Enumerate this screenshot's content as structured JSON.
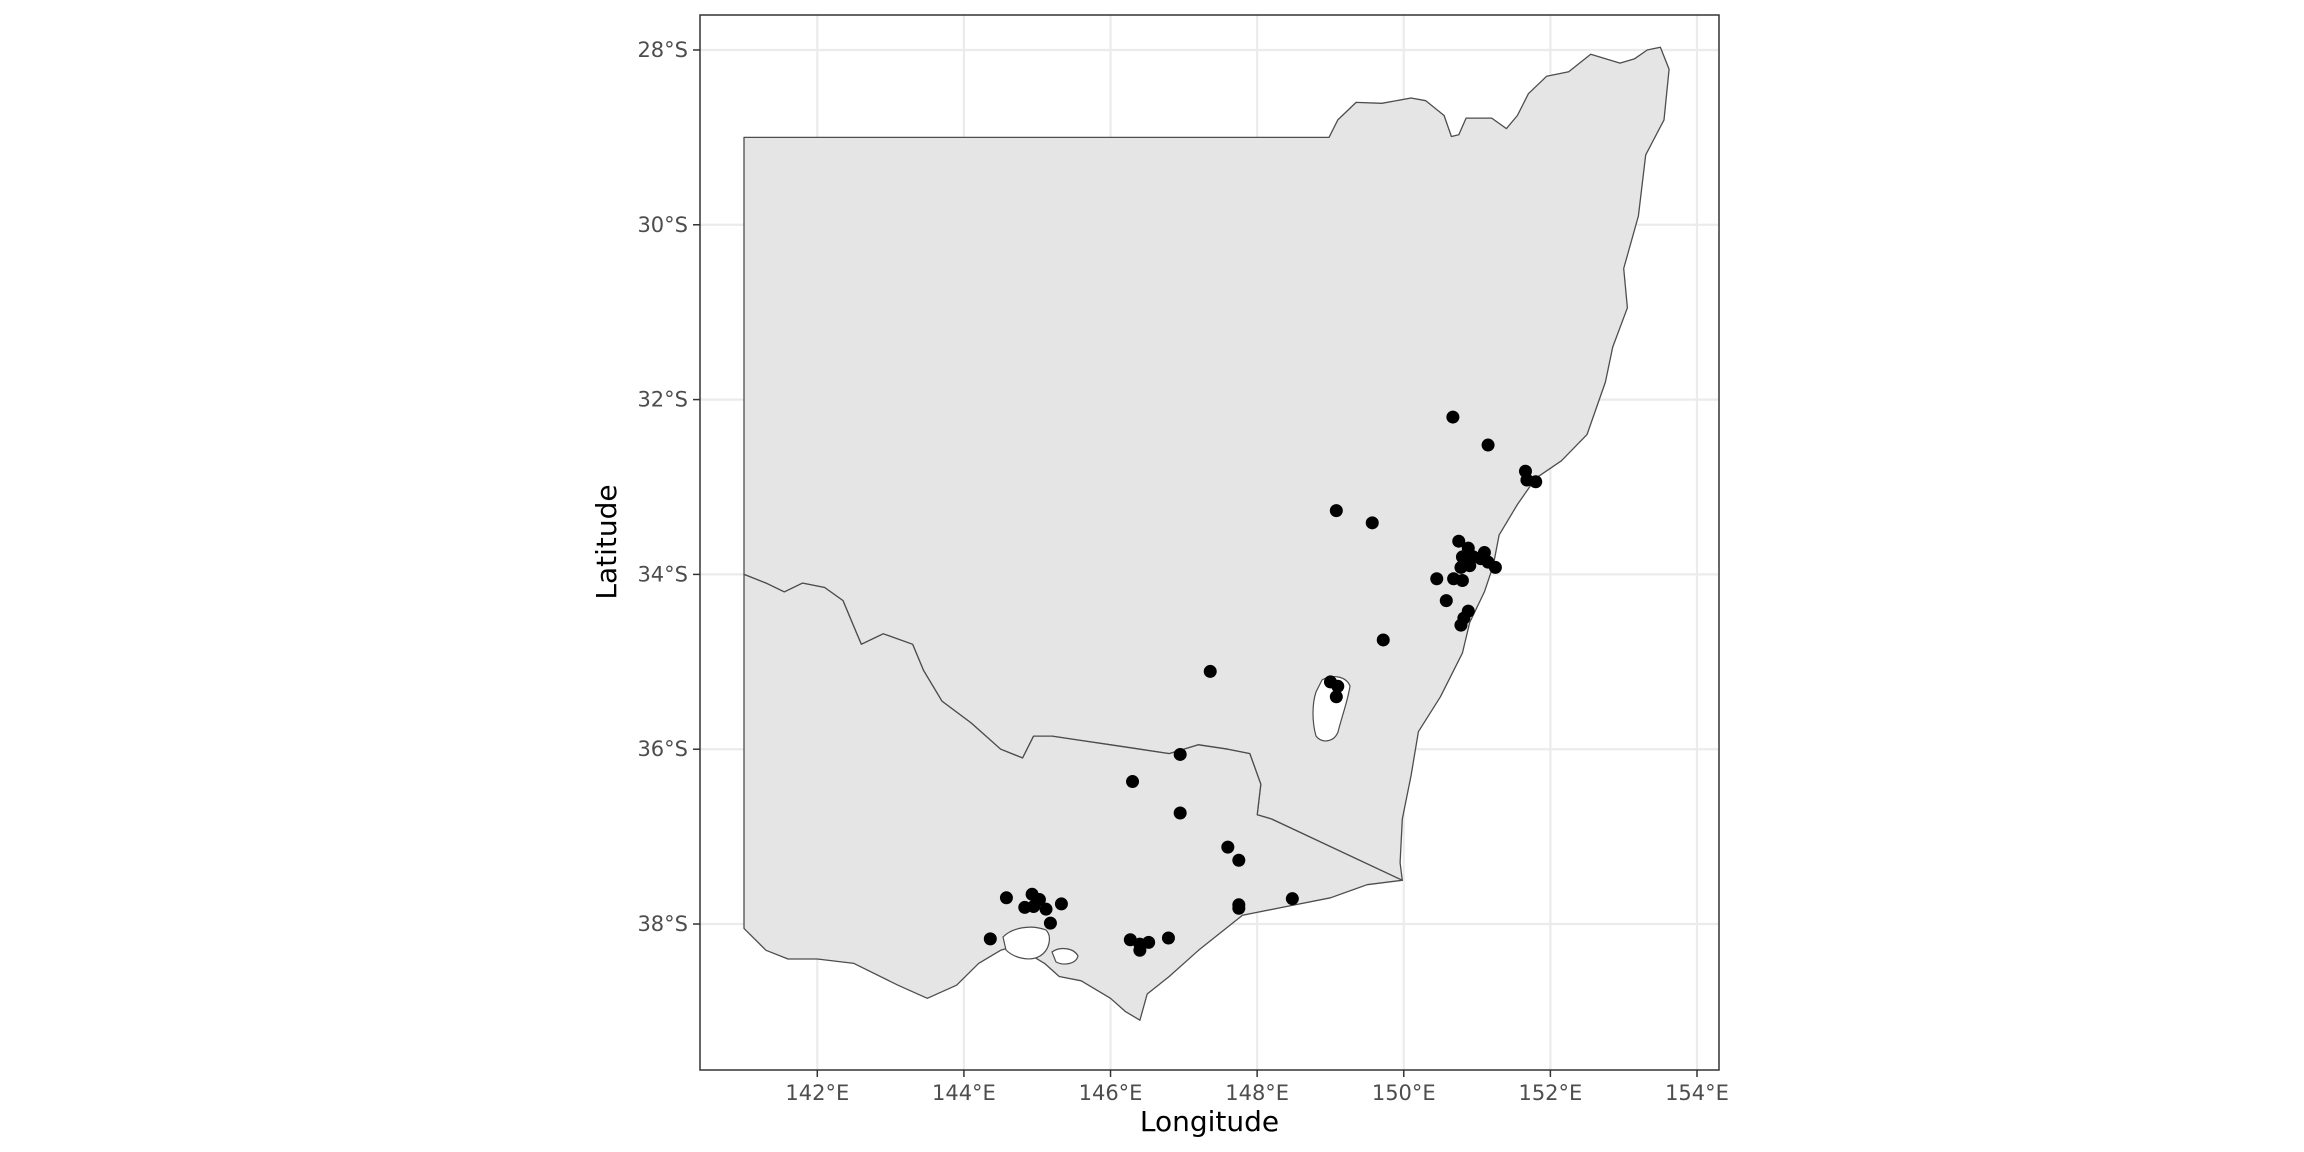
{
  "chart_data": {
    "type": "scatter",
    "title": "",
    "xlabel": "Longitude",
    "ylabel": "Latitude",
    "xlim": [
      140.4,
      154.3
    ],
    "ylim": [
      -39.67,
      -27.6
    ],
    "grid": true,
    "x_ticks": [
      {
        "value": 142,
        "label": "142°E"
      },
      {
        "value": 144,
        "label": "144°E"
      },
      {
        "value": 146,
        "label": "146°E"
      },
      {
        "value": 148,
        "label": "148°E"
      },
      {
        "value": 150,
        "label": "150°E"
      },
      {
        "value": 152,
        "label": "152°E"
      },
      {
        "value": 154,
        "label": "154°E"
      }
    ],
    "y_ticks": [
      {
        "value": -28,
        "label": "28°S"
      },
      {
        "value": -30,
        "label": "30°S"
      },
      {
        "value": -32,
        "label": "32°S"
      },
      {
        "value": -34,
        "label": "34°S"
      },
      {
        "value": -36,
        "label": "36°S"
      },
      {
        "value": -38,
        "label": "38°S"
      }
    ],
    "colors": {
      "land_fill": "#e5e5e5",
      "border": "#4d4d4d",
      "grid": "#ebebeb",
      "point": "#000000",
      "panel_border": "#333333"
    },
    "regions": [
      {
        "name": "nsw",
        "points": [
          [
            141.0,
            -29.0
          ],
          [
            148.98,
            -29.0
          ],
          [
            149.1,
            -28.8
          ],
          [
            149.35,
            -28.6
          ],
          [
            149.7,
            -28.61
          ],
          [
            150.1,
            -28.55
          ],
          [
            150.3,
            -28.58
          ],
          [
            150.55,
            -28.75
          ],
          [
            150.65,
            -28.99
          ],
          [
            150.75,
            -28.97
          ],
          [
            150.85,
            -28.78
          ],
          [
            151.2,
            -28.78
          ],
          [
            151.4,
            -28.9
          ],
          [
            151.55,
            -28.75
          ],
          [
            151.7,
            -28.5
          ],
          [
            151.95,
            -28.3
          ],
          [
            152.25,
            -28.25
          ],
          [
            152.55,
            -28.05
          ],
          [
            152.95,
            -28.15
          ],
          [
            153.15,
            -28.1
          ],
          [
            153.32,
            -28.0
          ],
          [
            153.5,
            -27.97
          ],
          [
            153.62,
            -28.22
          ],
          [
            153.55,
            -28.8
          ],
          [
            153.3,
            -29.2
          ],
          [
            153.2,
            -29.9
          ],
          [
            153.0,
            -30.5
          ],
          [
            153.05,
            -30.95
          ],
          [
            152.85,
            -31.4
          ],
          [
            152.75,
            -31.8
          ],
          [
            152.5,
            -32.4
          ],
          [
            152.15,
            -32.7
          ],
          [
            151.8,
            -32.9
          ],
          [
            151.55,
            -33.2
          ],
          [
            151.3,
            -33.55
          ],
          [
            151.22,
            -33.9
          ],
          [
            151.1,
            -34.2
          ],
          [
            150.9,
            -34.55
          ],
          [
            150.8,
            -34.9
          ],
          [
            150.5,
            -35.4
          ],
          [
            150.2,
            -35.8
          ],
          [
            150.1,
            -36.3
          ],
          [
            149.98,
            -36.8
          ],
          [
            149.95,
            -37.3
          ],
          [
            149.98,
            -37.5
          ],
          [
            148.2,
            -36.8
          ],
          [
            148.0,
            -36.75
          ],
          [
            148.05,
            -36.4
          ],
          [
            147.9,
            -36.05
          ],
          [
            147.6,
            -36.0
          ],
          [
            147.2,
            -35.95
          ],
          [
            146.8,
            -36.05
          ],
          [
            146.4,
            -36.0
          ],
          [
            146.0,
            -35.95
          ],
          [
            145.6,
            -35.9
          ],
          [
            145.2,
            -35.85
          ],
          [
            144.95,
            -35.85
          ],
          [
            144.8,
            -36.1
          ],
          [
            144.5,
            -36.0
          ],
          [
            144.1,
            -35.7
          ],
          [
            143.7,
            -35.45
          ],
          [
            143.45,
            -35.1
          ],
          [
            143.3,
            -34.8
          ],
          [
            142.9,
            -34.68
          ],
          [
            142.6,
            -34.8
          ],
          [
            142.5,
            -34.6
          ],
          [
            142.35,
            -34.3
          ],
          [
            142.1,
            -34.15
          ],
          [
            141.8,
            -34.1
          ],
          [
            141.55,
            -34.2
          ],
          [
            141.3,
            -34.1
          ],
          [
            141.0,
            -34.0
          ]
        ]
      },
      {
        "name": "vic",
        "points": [
          [
            141.0,
            -34.0
          ],
          [
            141.3,
            -34.1
          ],
          [
            141.55,
            -34.2
          ],
          [
            141.8,
            -34.1
          ],
          [
            142.1,
            -34.15
          ],
          [
            142.35,
            -34.3
          ],
          [
            142.5,
            -34.6
          ],
          [
            142.6,
            -34.8
          ],
          [
            142.9,
            -34.68
          ],
          [
            143.3,
            -34.8
          ],
          [
            143.45,
            -35.1
          ],
          [
            143.7,
            -35.45
          ],
          [
            144.1,
            -35.7
          ],
          [
            144.5,
            -36.0
          ],
          [
            144.8,
            -36.1
          ],
          [
            144.95,
            -35.85
          ],
          [
            145.2,
            -35.85
          ],
          [
            145.6,
            -35.9
          ],
          [
            146.0,
            -35.95
          ],
          [
            146.4,
            -36.0
          ],
          [
            146.8,
            -36.05
          ],
          [
            147.2,
            -35.95
          ],
          [
            147.6,
            -36.0
          ],
          [
            147.9,
            -36.05
          ],
          [
            148.05,
            -36.4
          ],
          [
            148.0,
            -36.75
          ],
          [
            148.2,
            -36.8
          ],
          [
            149.98,
            -37.5
          ],
          [
            149.5,
            -37.55
          ],
          [
            149.0,
            -37.7
          ],
          [
            148.4,
            -37.8
          ],
          [
            147.8,
            -37.9
          ],
          [
            147.2,
            -38.3
          ],
          [
            146.8,
            -38.6
          ],
          [
            146.5,
            -38.8
          ],
          [
            146.4,
            -39.1
          ],
          [
            146.2,
            -39.0
          ],
          [
            146.0,
            -38.85
          ],
          [
            145.6,
            -38.65
          ],
          [
            145.3,
            -38.6
          ],
          [
            145.1,
            -38.45
          ],
          [
            144.9,
            -38.35
          ],
          [
            144.7,
            -38.25
          ],
          [
            144.5,
            -38.3
          ],
          [
            144.2,
            -38.45
          ],
          [
            143.9,
            -38.7
          ],
          [
            143.5,
            -38.85
          ],
          [
            143.1,
            -38.7
          ],
          [
            142.5,
            -38.45
          ],
          [
            142.0,
            -38.4
          ],
          [
            141.6,
            -38.4
          ],
          [
            141.3,
            -38.3
          ],
          [
            141.0,
            -38.05
          ]
        ]
      }
    ],
    "points": [
      {
        "x": 150.67,
        "y": -32.2
      },
      {
        "x": 151.15,
        "y": -32.52
      },
      {
        "x": 151.66,
        "y": -32.82
      },
      {
        "x": 151.68,
        "y": -32.92
      },
      {
        "x": 151.8,
        "y": -32.94
      },
      {
        "x": 149.08,
        "y": -33.27
      },
      {
        "x": 149.57,
        "y": -33.41
      },
      {
        "x": 150.75,
        "y": -33.62
      },
      {
        "x": 150.88,
        "y": -33.7
      },
      {
        "x": 151.1,
        "y": -33.75
      },
      {
        "x": 150.8,
        "y": -33.8
      },
      {
        "x": 150.95,
        "y": -33.8
      },
      {
        "x": 151.05,
        "y": -33.82
      },
      {
        "x": 151.15,
        "y": -33.86
      },
      {
        "x": 151.25,
        "y": -33.92
      },
      {
        "x": 150.9,
        "y": -33.9
      },
      {
        "x": 150.78,
        "y": -33.92
      },
      {
        "x": 150.45,
        "y": -34.05
      },
      {
        "x": 150.68,
        "y": -34.05
      },
      {
        "x": 150.8,
        "y": -34.07
      },
      {
        "x": 150.58,
        "y": -34.3
      },
      {
        "x": 150.88,
        "y": -34.42
      },
      {
        "x": 150.82,
        "y": -34.5
      },
      {
        "x": 150.78,
        "y": -34.58
      },
      {
        "x": 149.72,
        "y": -34.75
      },
      {
        "x": 147.36,
        "y": -35.11
      },
      {
        "x": 149.0,
        "y": -35.23
      },
      {
        "x": 149.1,
        "y": -35.28
      },
      {
        "x": 149.08,
        "y": -35.4
      },
      {
        "x": 146.95,
        "y": -36.06
      },
      {
        "x": 146.3,
        "y": -36.37
      },
      {
        "x": 146.95,
        "y": -36.73
      },
      {
        "x": 147.6,
        "y": -37.12
      },
      {
        "x": 147.75,
        "y": -37.27
      },
      {
        "x": 147.75,
        "y": -37.78
      },
      {
        "x": 147.75,
        "y": -37.82
      },
      {
        "x": 148.48,
        "y": -37.71
      },
      {
        "x": 144.58,
        "y": -37.7
      },
      {
        "x": 144.93,
        "y": -37.66
      },
      {
        "x": 145.03,
        "y": -37.72
      },
      {
        "x": 145.33,
        "y": -37.77
      },
      {
        "x": 144.83,
        "y": -37.81
      },
      {
        "x": 144.95,
        "y": -37.8
      },
      {
        "x": 145.12,
        "y": -37.83
      },
      {
        "x": 145.18,
        "y": -37.99
      },
      {
        "x": 144.36,
        "y": -38.17
      },
      {
        "x": 146.27,
        "y": -38.18
      },
      {
        "x": 146.4,
        "y": -38.23
      },
      {
        "x": 146.52,
        "y": -38.21
      },
      {
        "x": 146.79,
        "y": -38.16
      },
      {
        "x": 146.4,
        "y": -38.3
      }
    ]
  }
}
